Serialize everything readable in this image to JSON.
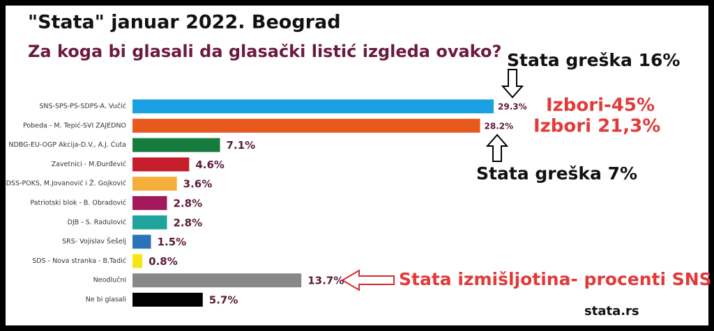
{
  "chart_data": {
    "type": "bar",
    "orientation": "horizontal",
    "title": "\"Stata\" januar 2022.  Beograd",
    "subtitle": "Za koga bi glasali da glasački listić izgleda ovako?",
    "categories": [
      "SNS-SPS-PS-SDPS-A. Vučić",
      "Pobeda - M. Tepić-SVI ZAJEDNO",
      "NDBG-EU-OGP Akcija-D.V., A.J. Ćuta",
      "Zavetnici - M.Đurđević",
      "DSS-POKS, M.Jovanović i Ž. Gojković",
      "Patriotski blok - B. Obradović",
      "DJB - S. Radulović",
      "SRS- Vojislav Šešelj",
      "SDS - Nova stranka - B.Tadić",
      "Neodlučni",
      "Ne bi glasali"
    ],
    "values": [
      29.3,
      28.2,
      7.1,
      4.6,
      3.6,
      2.8,
      2.8,
      1.5,
      0.8,
      13.7,
      5.7
    ],
    "value_labels": [
      "29.3%",
      "28.2%",
      "7.1%",
      "4.6%",
      "3.6%",
      "2.8%",
      "2.8%",
      "1.5%",
      "0.8%",
      "13.7%",
      "5.7%"
    ],
    "colors": [
      "#1ba1e2",
      "#e8591f",
      "#177a3e",
      "#c41e2c",
      "#f5ad3c",
      "#a3195b",
      "#1fa39a",
      "#2a73b8",
      "#f7e51b",
      "#888888",
      "#000000"
    ],
    "annotations": [
      "Stata greška 16%",
      "Izbori-45%",
      "Izbori 21,3%",
      "Stata greška 7%",
      "Stata izmišljotina- procenti SNS",
      "stata.rs"
    ]
  }
}
